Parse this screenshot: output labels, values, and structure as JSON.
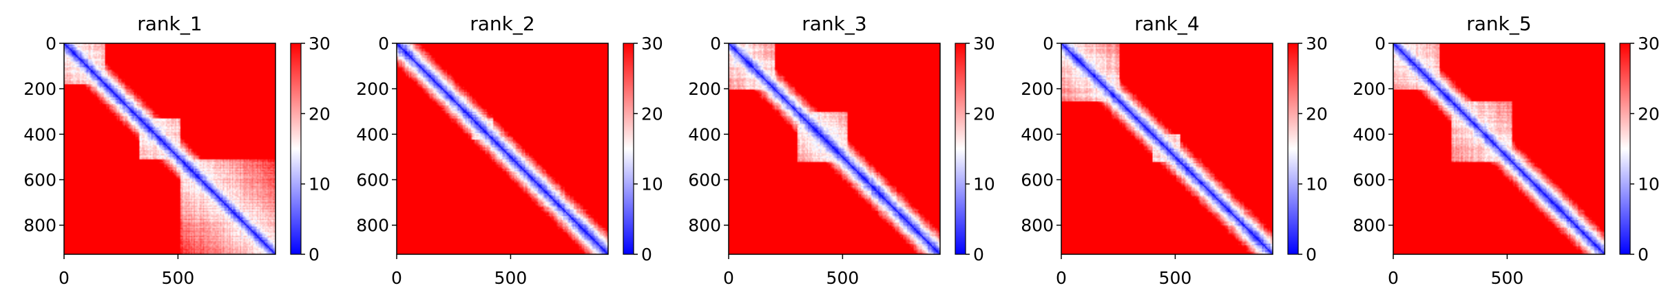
{
  "chart_data": [
    {
      "type": "heatmap",
      "title": "rank_1",
      "xlim": [
        0,
        928
      ],
      "ylim": [
        928,
        0
      ],
      "x_ticks": [
        "0",
        "500"
      ],
      "y_ticks": [
        "0",
        "200",
        "400",
        "600",
        "800"
      ],
      "colorbar": {
        "ticks": [
          "0",
          "10",
          "20",
          "30"
        ],
        "range": [
          0,
          30
        ],
        "colormap": "bwr"
      },
      "domain_blocks": [
        [
          0,
          175
        ],
        [
          330,
          510
        ],
        [
          510,
          928
        ]
      ]
    },
    {
      "type": "heatmap",
      "title": "rank_2",
      "xlim": [
        0,
        928
      ],
      "ylim": [
        928,
        0
      ],
      "x_ticks": [
        "0",
        "500"
      ],
      "y_ticks": [
        "0",
        "200",
        "400",
        "600",
        "800"
      ],
      "colorbar": {
        "ticks": [
          "0",
          "10",
          "20",
          "30"
        ],
        "range": [
          0,
          30
        ],
        "colormap": "bwr"
      },
      "domain_blocks": [
        [
          330,
          420
        ]
      ]
    },
    {
      "type": "heatmap",
      "title": "rank_3",
      "xlim": [
        0,
        928
      ],
      "ylim": [
        928,
        0
      ],
      "x_ticks": [
        "0",
        "500"
      ],
      "y_ticks": [
        "0",
        "200",
        "400",
        "600",
        "800"
      ],
      "colorbar": {
        "ticks": [
          "0",
          "10",
          "20",
          "30"
        ],
        "range": [
          0,
          30
        ],
        "colormap": "bwr"
      },
      "domain_blocks": [
        [
          0,
          200
        ],
        [
          300,
          520
        ]
      ]
    },
    {
      "type": "heatmap",
      "title": "rank_4",
      "xlim": [
        0,
        928
      ],
      "ylim": [
        928,
        0
      ],
      "x_ticks": [
        "0",
        "500"
      ],
      "y_ticks": [
        "0",
        "200",
        "400",
        "600",
        "800"
      ],
      "colorbar": {
        "ticks": [
          "0",
          "10",
          "20",
          "30"
        ],
        "range": [
          0,
          30
        ],
        "colormap": "bwr"
      },
      "domain_blocks": [
        [
          0,
          250
        ],
        [
          400,
          520
        ]
      ]
    },
    {
      "type": "heatmap",
      "title": "rank_5",
      "xlim": [
        0,
        928
      ],
      "ylim": [
        928,
        0
      ],
      "x_ticks": [
        "0",
        "500"
      ],
      "y_ticks": [
        "0",
        "200",
        "400",
        "600",
        "800"
      ],
      "colorbar": {
        "ticks": [
          "0",
          "10",
          "20",
          "30"
        ],
        "range": [
          0,
          30
        ],
        "colormap": "bwr"
      },
      "domain_blocks": [
        [
          0,
          200
        ],
        [
          250,
          520
        ]
      ]
    }
  ],
  "colors": {
    "low": "#0000ff",
    "mid": "#ffffff",
    "high": "#ff0000"
  }
}
